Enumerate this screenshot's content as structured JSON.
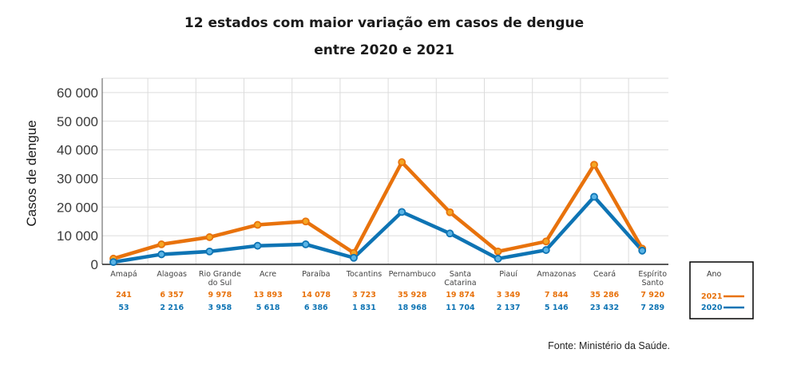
{
  "chart_data": {
    "type": "line",
    "title": [
      "12 estados com maior variação em casos de dengue",
      "entre 2020 e 2021"
    ],
    "ylabel": "Casos de dengue",
    "xlabel": "",
    "ylim": [
      0,
      65000
    ],
    "yticks": [
      0,
      10000,
      20000,
      30000,
      40000,
      50000,
      60000
    ],
    "ytick_labels": [
      "0",
      "10 000",
      "20 000",
      "30 000",
      "40 000",
      "50 000",
      "60 000"
    ],
    "grid": true,
    "categories": [
      [
        "Amapá"
      ],
      [
        "Alagoas"
      ],
      [
        "Rio Grande",
        "do Sul"
      ],
      [
        "Acre"
      ],
      [
        "Paraíba"
      ],
      [
        "Tocantins"
      ],
      [
        "Pernambuco"
      ],
      [
        "Santa",
        "Catarina"
      ],
      [
        "Piauí"
      ],
      [
        "Amazonas"
      ],
      [
        "Ceará"
      ],
      [
        "Espírito",
        "Santo"
      ]
    ],
    "series": [
      {
        "name": "2021",
        "color": "#E8720C",
        "values": [
          241,
          6357,
          9978,
          13893,
          14078,
          3723,
          35928,
          19874,
          3349,
          7844,
          35286,
          7920
        ],
        "value_labels": [
          "241",
          "6 357",
          "9 978",
          "13 893",
          "14 078",
          "3 723",
          "35 928",
          "19 874",
          "3 349",
          "7 844",
          "35 286",
          "7 920"
        ],
        "line_values": [
          2000,
          7000,
          9500,
          13800,
          15000,
          4000,
          35700,
          18200,
          4500,
          8000,
          34800,
          5500
        ]
      },
      {
        "name": "2020",
        "color": "#0E74B4",
        "values": [
          53,
          2216,
          3958,
          5618,
          6386,
          1831,
          18968,
          11704,
          2137,
          5146,
          23432,
          7289
        ],
        "value_labels": [
          "53",
          "2 216",
          "3 958",
          "5 618",
          "6 386",
          "1 831",
          "18 968",
          "11 704",
          "2 137",
          "5 146",
          "23 432",
          "7 289"
        ],
        "line_values": [
          800,
          3500,
          4500,
          6500,
          7000,
          2300,
          18300,
          10800,
          2000,
          5000,
          23600,
          4800
        ]
      }
    ],
    "legend": {
      "title": "Ano",
      "placement": "right"
    },
    "source": "Fonte: Ministério da Saúde."
  }
}
